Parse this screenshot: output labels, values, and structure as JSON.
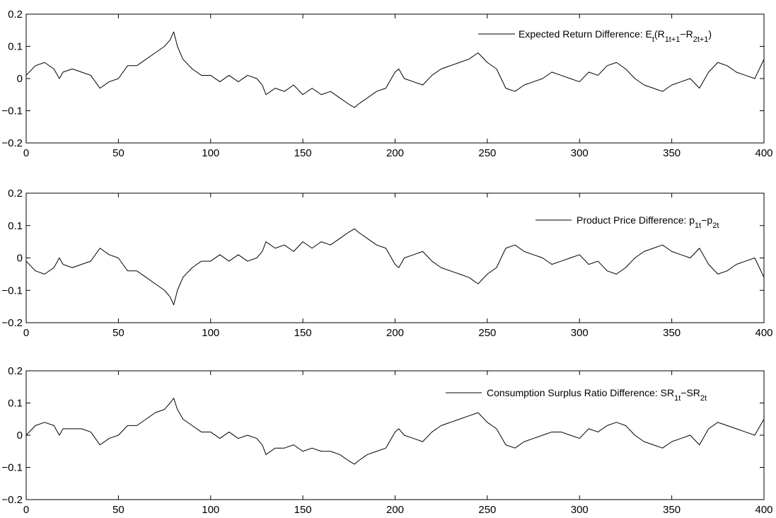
{
  "chart_data": [
    {
      "type": "line",
      "title": "",
      "xlabel": "",
      "ylabel": "",
      "xlim": [
        0,
        400
      ],
      "ylim": [
        -0.2,
        0.2
      ],
      "xticks": [
        "0",
        "50",
        "100",
        "150",
        "200",
        "250",
        "300",
        "350",
        "400"
      ],
      "yticks": [
        "0.2",
        "0.1",
        "0",
        "−0.1",
        "−0.2"
      ],
      "grid": false,
      "legend_position": "top-right",
      "legend": {
        "main": "Expected Return Difference: E",
        "sub1": "t",
        "main2": "(R",
        "sub2": "1t+1",
        "main3": "−R",
        "sub3": "2t+1",
        "main4": ")"
      },
      "series": [
        {
          "name": "Expected Return Difference: Et(R1t+1−R2t+1)",
          "x": [
            0,
            5,
            10,
            15,
            18,
            20,
            25,
            30,
            35,
            40,
            45,
            50,
            55,
            60,
            65,
            70,
            75,
            78,
            80,
            82,
            85,
            90,
            95,
            100,
            105,
            110,
            115,
            120,
            125,
            128,
            130,
            135,
            140,
            145,
            150,
            155,
            160,
            165,
            170,
            175,
            178,
            180,
            185,
            190,
            195,
            200,
            202,
            205,
            210,
            215,
            220,
            225,
            230,
            235,
            240,
            245,
            250,
            255,
            260,
            265,
            270,
            275,
            280,
            285,
            290,
            295,
            300,
            305,
            310,
            315,
            320,
            325,
            330,
            335,
            340,
            345,
            350,
            355,
            360,
            365,
            370,
            375,
            380,
            385,
            390,
            395,
            400
          ],
          "y": [
            0.01,
            0.04,
            0.05,
            0.03,
            0.0,
            0.02,
            0.03,
            0.02,
            0.01,
            -0.03,
            -0.01,
            0.0,
            0.04,
            0.04,
            0.06,
            0.08,
            0.1,
            0.12,
            0.145,
            0.1,
            0.06,
            0.03,
            0.01,
            0.01,
            -0.01,
            0.01,
            -0.01,
            0.01,
            0.0,
            -0.02,
            -0.05,
            -0.03,
            -0.04,
            -0.02,
            -0.05,
            -0.03,
            -0.05,
            -0.04,
            -0.06,
            -0.08,
            -0.09,
            -0.08,
            -0.06,
            -0.04,
            -0.03,
            0.02,
            0.03,
            0.0,
            -0.01,
            -0.02,
            0.01,
            0.03,
            0.04,
            0.05,
            0.06,
            0.08,
            0.05,
            0.03,
            -0.03,
            -0.04,
            -0.02,
            -0.01,
            0.0,
            0.02,
            0.01,
            0.0,
            -0.01,
            0.02,
            0.01,
            0.04,
            0.05,
            0.03,
            0.0,
            -0.02,
            -0.03,
            -0.04,
            -0.02,
            -0.01,
            0.0,
            -0.03,
            0.02,
            0.05,
            0.04,
            0.02,
            0.01,
            0.0,
            0.06
          ]
        }
      ]
    },
    {
      "type": "line",
      "title": "",
      "xlabel": "",
      "ylabel": "",
      "xlim": [
        0,
        400
      ],
      "ylim": [
        -0.2,
        0.2
      ],
      "xticks": [
        "0",
        "50",
        "100",
        "150",
        "200",
        "250",
        "300",
        "350",
        "400"
      ],
      "yticks": [
        "0.2",
        "0.1",
        "0",
        "−0.1",
        "−0.2"
      ],
      "grid": false,
      "legend_position": "top-right",
      "legend": {
        "main": "Product Price Difference: p",
        "sub1": "1t",
        "main2": "−p",
        "sub2": "2t",
        "main3": "",
        "sub3": "",
        "main4": ""
      },
      "series": [
        {
          "name": "Product Price Difference: p1t−p2t",
          "x": [
            0,
            5,
            10,
            15,
            18,
            20,
            25,
            30,
            35,
            40,
            45,
            50,
            55,
            60,
            65,
            70,
            75,
            78,
            80,
            82,
            85,
            90,
            95,
            100,
            105,
            110,
            115,
            120,
            125,
            128,
            130,
            135,
            140,
            145,
            150,
            155,
            160,
            165,
            170,
            175,
            178,
            180,
            185,
            190,
            195,
            200,
            202,
            205,
            210,
            215,
            220,
            225,
            230,
            235,
            240,
            245,
            250,
            255,
            260,
            265,
            270,
            275,
            280,
            285,
            290,
            295,
            300,
            305,
            310,
            315,
            320,
            325,
            330,
            335,
            340,
            345,
            350,
            355,
            360,
            365,
            370,
            375,
            380,
            385,
            390,
            395,
            400
          ],
          "y": [
            -0.01,
            -0.04,
            -0.05,
            -0.03,
            0.0,
            -0.02,
            -0.03,
            -0.02,
            -0.01,
            0.03,
            0.01,
            0.0,
            -0.04,
            -0.04,
            -0.06,
            -0.08,
            -0.1,
            -0.12,
            -0.145,
            -0.1,
            -0.06,
            -0.03,
            -0.01,
            -0.01,
            0.01,
            -0.01,
            0.01,
            -0.01,
            0.0,
            0.02,
            0.05,
            0.03,
            0.04,
            0.02,
            0.05,
            0.03,
            0.05,
            0.04,
            0.06,
            0.08,
            0.09,
            0.08,
            0.06,
            0.04,
            0.03,
            -0.02,
            -0.03,
            0.0,
            0.01,
            0.02,
            -0.01,
            -0.03,
            -0.04,
            -0.05,
            -0.06,
            -0.08,
            -0.05,
            -0.03,
            0.03,
            0.04,
            0.02,
            0.01,
            0.0,
            -0.02,
            -0.01,
            0.0,
            0.01,
            -0.02,
            -0.01,
            -0.04,
            -0.05,
            -0.03,
            0.0,
            0.02,
            0.03,
            0.04,
            0.02,
            0.01,
            0.0,
            0.03,
            -0.02,
            -0.05,
            -0.04,
            -0.02,
            -0.01,
            0.0,
            -0.06
          ]
        }
      ]
    },
    {
      "type": "line",
      "title": "",
      "xlabel": "",
      "ylabel": "",
      "xlim": [
        0,
        400
      ],
      "ylim": [
        -0.2,
        0.2
      ],
      "xticks": [
        "0",
        "50",
        "100",
        "150",
        "200",
        "250",
        "300",
        "350",
        "400"
      ],
      "yticks": [
        "0.2",
        "0.1",
        "0",
        "−0.1",
        "−0.2"
      ],
      "grid": false,
      "legend_position": "top-right",
      "legend": {
        "main": "Consumption Surplus Ratio Difference: SR",
        "sub1": "1t",
        "main2": "−SR",
        "sub2": "2t",
        "main3": "",
        "sub3": "",
        "main4": ""
      },
      "series": [
        {
          "name": "Consumption Surplus Ratio Difference: SR1t−SR2t",
          "x": [
            0,
            5,
            10,
            15,
            18,
            20,
            25,
            30,
            35,
            40,
            45,
            50,
            55,
            60,
            65,
            70,
            75,
            78,
            80,
            82,
            85,
            90,
            95,
            100,
            105,
            110,
            115,
            120,
            125,
            128,
            130,
            135,
            140,
            145,
            150,
            155,
            160,
            165,
            170,
            175,
            178,
            180,
            185,
            190,
            195,
            200,
            202,
            205,
            210,
            215,
            220,
            225,
            230,
            235,
            240,
            245,
            250,
            255,
            260,
            265,
            270,
            275,
            280,
            285,
            290,
            295,
            300,
            305,
            310,
            315,
            320,
            325,
            330,
            335,
            340,
            345,
            350,
            355,
            360,
            365,
            370,
            375,
            380,
            385,
            390,
            395,
            400
          ],
          "y": [
            0.0,
            0.03,
            0.04,
            0.03,
            0.0,
            0.02,
            0.02,
            0.02,
            0.01,
            -0.03,
            -0.01,
            0.0,
            0.03,
            0.03,
            0.05,
            0.07,
            0.08,
            0.1,
            0.115,
            0.08,
            0.05,
            0.03,
            0.01,
            0.01,
            -0.01,
            0.01,
            -0.01,
            0.0,
            -0.01,
            -0.03,
            -0.06,
            -0.04,
            -0.04,
            -0.03,
            -0.05,
            -0.04,
            -0.05,
            -0.05,
            -0.06,
            -0.08,
            -0.09,
            -0.08,
            -0.06,
            -0.05,
            -0.04,
            0.01,
            0.02,
            0.0,
            -0.01,
            -0.02,
            0.01,
            0.03,
            0.04,
            0.05,
            0.06,
            0.07,
            0.04,
            0.02,
            -0.03,
            -0.04,
            -0.02,
            -0.01,
            0.0,
            0.01,
            0.01,
            0.0,
            -0.01,
            0.02,
            0.01,
            0.03,
            0.04,
            0.03,
            0.0,
            -0.02,
            -0.03,
            -0.04,
            -0.02,
            -0.01,
            0.0,
            -0.03,
            0.02,
            0.04,
            0.03,
            0.02,
            0.01,
            0.0,
            0.05
          ]
        }
      ]
    }
  ]
}
